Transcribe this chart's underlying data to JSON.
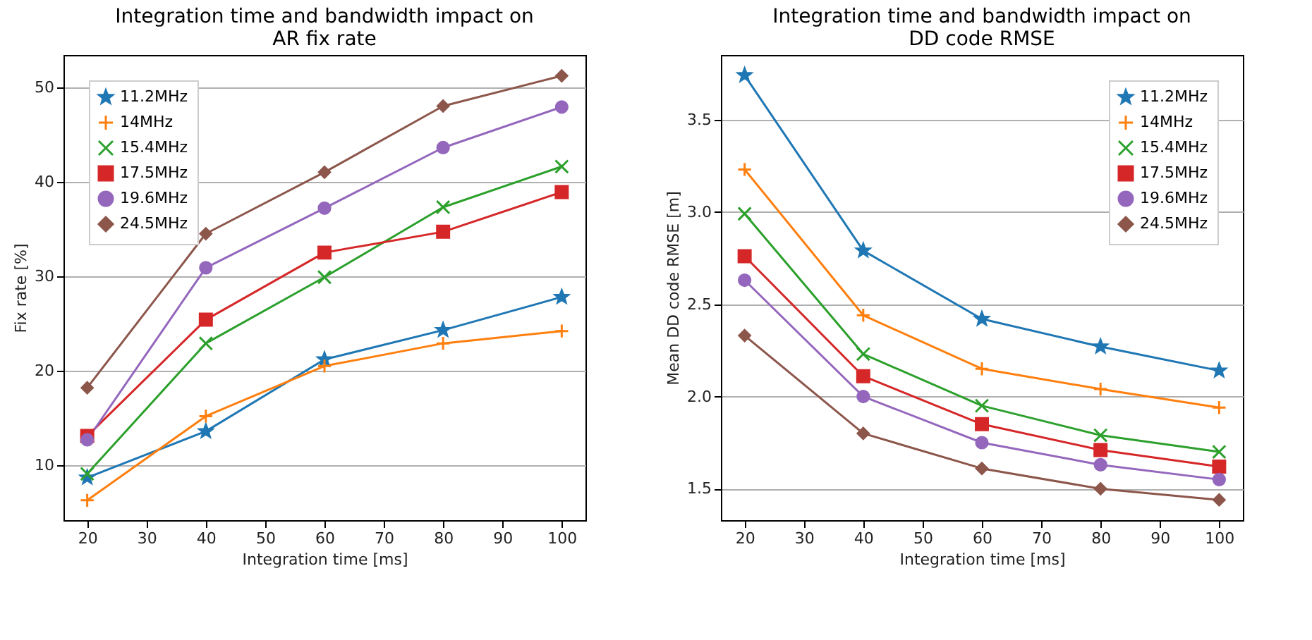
{
  "chart_data": [
    {
      "type": "line",
      "title": "Integration time and bandwidth impact on AR fix rate",
      "xlabel": "Integration time [ms]",
      "ylabel": "Fix rate [%]",
      "x": [
        20,
        40,
        60,
        80,
        100
      ],
      "xlim": [
        16,
        104
      ],
      "xticks": [
        20,
        30,
        40,
        50,
        60,
        70,
        80,
        90,
        100
      ],
      "ylim": [
        4.2,
        53.4
      ],
      "yticks": [
        10,
        20,
        30,
        40,
        50
      ],
      "grid": "y",
      "legend": "top left",
      "series": [
        {
          "name": "11.2MHz",
          "color": "#1f77b4",
          "marker": "star",
          "values": [
            8.7,
            13.6,
            21.2,
            24.3,
            27.8
          ]
        },
        {
          "name": "14MHz",
          "color": "#ff7f0e",
          "marker": "plus",
          "values": [
            6.3,
            15.2,
            20.5,
            22.9,
            24.2
          ]
        },
        {
          "name": "15.4MHz",
          "color": "#2ca02c",
          "marker": "cross",
          "values": [
            9.1,
            22.9,
            29.9,
            37.3,
            41.6
          ]
        },
        {
          "name": "17.5MHz",
          "color": "#d62728",
          "marker": "square",
          "values": [
            13.1,
            25.4,
            32.5,
            34.7,
            38.9
          ]
        },
        {
          "name": "19.6MHz",
          "color": "#9467bd",
          "marker": "circle",
          "values": [
            12.7,
            30.9,
            37.2,
            43.6,
            47.9
          ]
        },
        {
          "name": "24.5MHz",
          "color": "#8c564b",
          "marker": "diamond",
          "values": [
            18.2,
            34.5,
            41.0,
            48.0,
            51.2
          ]
        }
      ]
    },
    {
      "type": "line",
      "title": "Integration time and bandwidth impact on DD code RMSE",
      "xlabel": "Integration time [ms]",
      "ylabel": "Mean DD code RMSE [m]",
      "x": [
        20,
        40,
        60,
        80,
        100
      ],
      "xlim": [
        16,
        104
      ],
      "xticks": [
        20,
        30,
        40,
        50,
        60,
        70,
        80,
        90,
        100
      ],
      "ylim": [
        1.33,
        3.85
      ],
      "yticks": [
        {
          "value": 1.5,
          "label": "1.5"
        },
        {
          "value": 2,
          "label": "2.0"
        },
        {
          "value": 2.5,
          "label": "2.5"
        },
        {
          "value": 3,
          "label": "3.0"
        },
        {
          "value": 3.5,
          "label": "3.5"
        }
      ],
      "grid": "y",
      "legend": "top right",
      "series": [
        {
          "name": "11.2MHz",
          "color": "#1f77b4",
          "marker": "star",
          "values": [
            3.74,
            2.79,
            2.42,
            2.27,
            2.14
          ]
        },
        {
          "name": "14MHz",
          "color": "#ff7f0e",
          "marker": "plus",
          "values": [
            3.23,
            2.44,
            2.15,
            2.04,
            1.94
          ]
        },
        {
          "name": "15.4MHz",
          "color": "#2ca02c",
          "marker": "cross",
          "values": [
            2.99,
            2.23,
            1.95,
            1.79,
            1.7
          ]
        },
        {
          "name": "17.5MHz",
          "color": "#d62728",
          "marker": "square",
          "values": [
            2.76,
            2.11,
            1.85,
            1.71,
            1.62
          ]
        },
        {
          "name": "19.6MHz",
          "color": "#9467bd",
          "marker": "circle",
          "values": [
            2.63,
            2.0,
            1.75,
            1.63,
            1.55
          ]
        },
        {
          "name": "24.5MHz",
          "color": "#8c564b",
          "marker": "diamond",
          "values": [
            2.33,
            1.8,
            1.61,
            1.5,
            1.44
          ]
        }
      ]
    }
  ]
}
